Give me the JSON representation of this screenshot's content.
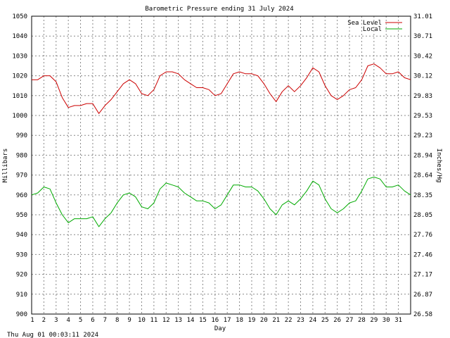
{
  "chart_data": {
    "type": "line",
    "title": "Barometric Pressure ending 31 July 2024",
    "xlabel": "Day",
    "ylabel_left": "Millibars",
    "ylabel_right": "Inches/Hg",
    "footer_timestamp": "Thu Aug 01 00:03:11 2024",
    "grid": true,
    "legend_position": "top-right",
    "xlim": [
      1,
      32
    ],
    "ylim": [
      900,
      1050
    ],
    "x_tick_labels": [
      "1",
      "2",
      "3",
      "4",
      "5",
      "6",
      "7",
      "8",
      "9",
      "10",
      "11",
      "12",
      "13",
      "14",
      "15",
      "16",
      "17",
      "18",
      "19",
      "20",
      "21",
      "22",
      "23",
      "24",
      "25",
      "26",
      "27",
      "28",
      "29",
      "30",
      "31"
    ],
    "y_ticks_left": [
      900,
      910,
      920,
      930,
      940,
      950,
      960,
      970,
      980,
      990,
      1000,
      1010,
      1020,
      1030,
      1040,
      1050
    ],
    "y_tick_labels_right": [
      "26.58",
      "26.87",
      "27.17",
      "27.46",
      "27.76",
      "28.05",
      "28.35",
      "28.64",
      "28.94",
      "29.23",
      "29.53",
      "29.83",
      "30.12",
      "30.42",
      "30.71",
      "31.01"
    ],
    "series": [
      {
        "name": "Sea Level",
        "color": "#cc0000",
        "x": [
          1.0,
          1.5,
          2.0,
          2.5,
          3.0,
          3.5,
          4.0,
          4.5,
          5.0,
          5.5,
          6.0,
          6.5,
          7.0,
          7.5,
          8.0,
          8.5,
          9.0,
          9.5,
          10.0,
          10.5,
          11.0,
          11.5,
          12.0,
          12.5,
          13.0,
          13.5,
          14.0,
          14.5,
          15.0,
          15.5,
          16.0,
          16.5,
          17.0,
          17.5,
          18.0,
          18.5,
          19.0,
          19.5,
          20.0,
          20.5,
          21.0,
          21.5,
          22.0,
          22.5,
          23.0,
          23.5,
          24.0,
          24.5,
          25.0,
          25.5,
          26.0,
          26.5,
          27.0,
          27.5,
          28.0,
          28.5,
          29.0,
          29.5,
          30.0,
          30.5,
          31.0,
          31.5,
          32.0
        ],
        "values": [
          1018,
          1018,
          1020,
          1020,
          1017,
          1009,
          1004,
          1005,
          1005,
          1006,
          1006,
          1001,
          1005,
          1008,
          1012,
          1016,
          1018,
          1016,
          1011,
          1010,
          1013,
          1020,
          1022,
          1022,
          1021,
          1018,
          1016,
          1014,
          1014,
          1013,
          1010,
          1011,
          1016,
          1021,
          1022,
          1021,
          1021,
          1020,
          1016,
          1011,
          1007,
          1012,
          1015,
          1012,
          1015,
          1019,
          1024,
          1022,
          1015,
          1010,
          1008,
          1010,
          1013,
          1014,
          1018,
          1025,
          1026,
          1024,
          1021,
          1021,
          1022,
          1019,
          1018
        ]
      },
      {
        "name": "Local",
        "color": "#00aa00",
        "x": [
          1.0,
          1.5,
          2.0,
          2.5,
          3.0,
          3.5,
          4.0,
          4.5,
          5.0,
          5.5,
          6.0,
          6.5,
          7.0,
          7.5,
          8.0,
          8.5,
          9.0,
          9.5,
          10.0,
          10.5,
          11.0,
          11.5,
          12.0,
          12.5,
          13.0,
          13.5,
          14.0,
          14.5,
          15.0,
          15.5,
          16.0,
          16.5,
          17.0,
          17.5,
          18.0,
          18.5,
          19.0,
          19.5,
          20.0,
          20.5,
          21.0,
          21.5,
          22.0,
          22.5,
          23.0,
          23.5,
          24.0,
          24.5,
          25.0,
          25.5,
          26.0,
          26.5,
          27.0,
          27.5,
          28.0,
          28.5,
          29.0,
          29.5,
          30.0,
          30.5,
          31.0,
          31.5,
          32.0
        ],
        "values": [
          960,
          961,
          964,
          963,
          956,
          950,
          946,
          948,
          948,
          948,
          949,
          944,
          948,
          951,
          956,
          960,
          961,
          959,
          954,
          953,
          956,
          963,
          966,
          965,
          964,
          961,
          959,
          957,
          957,
          956,
          953,
          955,
          960,
          965,
          965,
          964,
          964,
          962,
          958,
          953,
          950,
          955,
          957,
          955,
          958,
          962,
          967,
          965,
          958,
          953,
          951,
          953,
          956,
          957,
          962,
          968,
          969,
          968,
          964,
          964,
          965,
          962,
          960
        ]
      }
    ]
  }
}
